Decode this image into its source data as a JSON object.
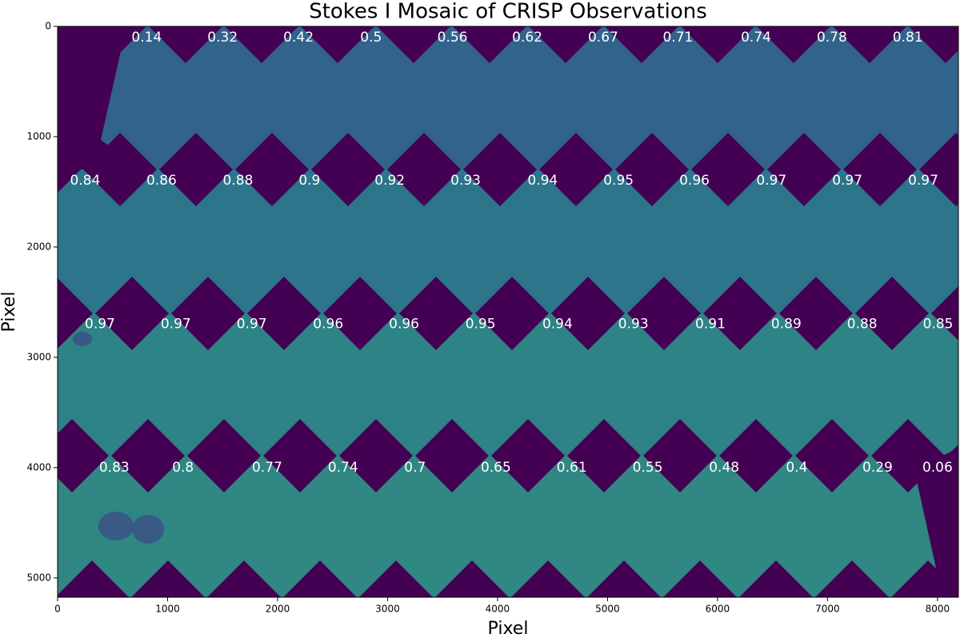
{
  "chart_data": {
    "type": "image",
    "title": "Stokes I Mosaic of CRISP Observations",
    "xlabel": "Pixel",
    "ylabel": "Pixel",
    "xlim": [
      0,
      8190
    ],
    "ylim": [
      5175,
      0
    ],
    "xticks": [
      0,
      1000,
      2000,
      3000,
      4000,
      5000,
      6000,
      7000,
      8000
    ],
    "yticks": [
      0,
      1000,
      2000,
      3000,
      4000,
      5000
    ],
    "background_color": "#440154",
    "tile_colors": [
      "#31688e",
      "#2c7b8d",
      "#2d8a89",
      "#2f8d85"
    ],
    "annotation_color": "#ffffff",
    "annotations": [
      {
        "x": 810,
        "y": 100,
        "text": 0.14
      },
      {
        "x": 1500,
        "y": 100,
        "text": 0.32
      },
      {
        "x": 2190,
        "y": 100,
        "text": 0.42
      },
      {
        "x": 2850,
        "y": 100,
        "text": 0.5
      },
      {
        "x": 3590,
        "y": 100,
        "text": 0.56
      },
      {
        "x": 4270,
        "y": 100,
        "text": 0.62
      },
      {
        "x": 4960,
        "y": 100,
        "text": 0.67
      },
      {
        "x": 5640,
        "y": 100,
        "text": 0.71
      },
      {
        "x": 6350,
        "y": 100,
        "text": 0.74
      },
      {
        "x": 7040,
        "y": 100,
        "text": 0.78
      },
      {
        "x": 7730,
        "y": 100,
        "text": 0.81
      },
      {
        "x": 250,
        "y": 1400,
        "text": 0.84
      },
      {
        "x": 945,
        "y": 1400,
        "text": 0.86
      },
      {
        "x": 1640,
        "y": 1400,
        "text": 0.88
      },
      {
        "x": 2290,
        "y": 1400,
        "text": 0.9
      },
      {
        "x": 3020,
        "y": 1400,
        "text": 0.92
      },
      {
        "x": 3710,
        "y": 1400,
        "text": 0.93
      },
      {
        "x": 4410,
        "y": 1400,
        "text": 0.94
      },
      {
        "x": 5100,
        "y": 1400,
        "text": 0.95
      },
      {
        "x": 5790,
        "y": 1400,
        "text": 0.96
      },
      {
        "x": 6490,
        "y": 1400,
        "text": 0.97
      },
      {
        "x": 7180,
        "y": 1400,
        "text": 0.97
      },
      {
        "x": 7870,
        "y": 1400,
        "text": 0.97
      },
      {
        "x": 385,
        "y": 2700,
        "text": 0.97
      },
      {
        "x": 1075,
        "y": 2700,
        "text": 0.97
      },
      {
        "x": 1765,
        "y": 2700,
        "text": 0.97
      },
      {
        "x": 2460,
        "y": 2700,
        "text": 0.96
      },
      {
        "x": 3150,
        "y": 2700,
        "text": 0.96
      },
      {
        "x": 3845,
        "y": 2700,
        "text": 0.95
      },
      {
        "x": 4545,
        "y": 2700,
        "text": 0.94
      },
      {
        "x": 5235,
        "y": 2700,
        "text": 0.93
      },
      {
        "x": 5935,
        "y": 2700,
        "text": 0.91
      },
      {
        "x": 6625,
        "y": 2700,
        "text": 0.89
      },
      {
        "x": 7315,
        "y": 2700,
        "text": 0.88
      },
      {
        "x": 8005,
        "y": 2700,
        "text": 0.85
      },
      {
        "x": 515,
        "y": 4000,
        "text": 0.83
      },
      {
        "x": 1140,
        "y": 4000,
        "text": 0.8
      },
      {
        "x": 1905,
        "y": 4000,
        "text": 0.77
      },
      {
        "x": 2595,
        "y": 4000,
        "text": 0.74
      },
      {
        "x": 3250,
        "y": 4000,
        "text": 0.7
      },
      {
        "x": 3985,
        "y": 4000,
        "text": 0.65
      },
      {
        "x": 4675,
        "y": 4000,
        "text": 0.61
      },
      {
        "x": 5365,
        "y": 4000,
        "text": 0.55
      },
      {
        "x": 6060,
        "y": 4000,
        "text": 0.48
      },
      {
        "x": 6720,
        "y": 4000,
        "text": 0.4
      },
      {
        "x": 7455,
        "y": 4000,
        "text": 0.29
      },
      {
        "x": 8000,
        "y": 4000,
        "text": 0.06
      }
    ]
  }
}
